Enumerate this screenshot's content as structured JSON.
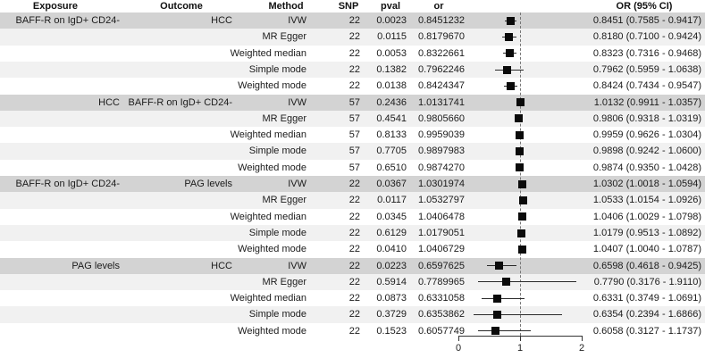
{
  "table": {
    "headers": [
      "Exposure",
      "Outcome",
      "Method",
      "SNP",
      "pval",
      "or",
      "OR (95% CI)"
    ]
  },
  "axis": {
    "tick_labels": [
      "0",
      "1",
      "2"
    ],
    "tick_values": [
      0,
      1,
      2
    ],
    "reference_value": 1
  },
  "colors": {
    "band_dark": "#d3d3d3",
    "band_light": "#f1f1f1",
    "band_white": "#ffffff",
    "marker": "#0b0b0b",
    "ci_line": "#2a2a2a",
    "reference_line": "#777777",
    "text": "#1b1b1b"
  },
  "chart_data": {
    "type": "scatter",
    "variant": "forest_plot",
    "title": "",
    "xlabel": "",
    "xlim": [
      0,
      2
    ],
    "x_ticks": [
      0,
      1,
      2
    ],
    "reference_line": 1,
    "legend": null,
    "rows": [
      {
        "exposure": "BAFF-R on IgD+ CD24-",
        "outcome": "HCC",
        "method": "IVW",
        "snp": 22,
        "pval": "0.0023",
        "or": "0.8451232",
        "ci_label": "0.8451 (0.7585 - 0.9417)",
        "est": 0.8451,
        "lo": 0.7585,
        "hi": 0.9417
      },
      {
        "exposure": "",
        "outcome": "",
        "method": "MR Egger",
        "snp": 22,
        "pval": "0.0115",
        "or": "0.8179670",
        "ci_label": "0.8180 (0.7100 - 0.9424)",
        "est": 0.818,
        "lo": 0.71,
        "hi": 0.9424
      },
      {
        "exposure": "",
        "outcome": "",
        "method": "Weighted median",
        "snp": 22,
        "pval": "0.0053",
        "or": "0.8322661",
        "ci_label": "0.8323 (0.7316 - 0.9468)",
        "est": 0.8323,
        "lo": 0.7316,
        "hi": 0.9468
      },
      {
        "exposure": "",
        "outcome": "",
        "method": "Simple mode",
        "snp": 22,
        "pval": "0.1382",
        "or": "0.7962246",
        "ci_label": "0.7962 (0.5959 - 1.0638)",
        "est": 0.7962,
        "lo": 0.5959,
        "hi": 1.0638
      },
      {
        "exposure": "",
        "outcome": "",
        "method": "Weighted mode",
        "snp": 22,
        "pval": "0.0138",
        "or": "0.8424347",
        "ci_label": "0.8424 (0.7434 - 0.9547)",
        "est": 0.8424,
        "lo": 0.7434,
        "hi": 0.9547
      },
      {
        "exposure": "HCC",
        "outcome": "BAFF-R on IgD+ CD24-",
        "method": "IVW",
        "snp": 57,
        "pval": "0.2436",
        "or": "1.0131741",
        "ci_label": "1.0132 (0.9911 - 1.0357)",
        "est": 1.0132,
        "lo": 0.9911,
        "hi": 1.0357
      },
      {
        "exposure": "",
        "outcome": "",
        "method": "MR Egger",
        "snp": 57,
        "pval": "0.4541",
        "or": "0.9805660",
        "ci_label": "0.9806 (0.9318 - 1.0319)",
        "est": 0.9806,
        "lo": 0.9318,
        "hi": 1.0319
      },
      {
        "exposure": "",
        "outcome": "",
        "method": "Weighted median",
        "snp": 57,
        "pval": "0.8133",
        "or": "0.9959039",
        "ci_label": "0.9959 (0.9626 - 1.0304)",
        "est": 0.9959,
        "lo": 0.9626,
        "hi": 1.0304
      },
      {
        "exposure": "",
        "outcome": "",
        "method": "Simple mode",
        "snp": 57,
        "pval": "0.7705",
        "or": "0.9897983",
        "ci_label": "0.9898 (0.9242 - 1.0600)",
        "est": 0.9898,
        "lo": 0.9242,
        "hi": 1.06
      },
      {
        "exposure": "",
        "outcome": "",
        "method": "Weighted mode",
        "snp": 57,
        "pval": "0.6510",
        "or": "0.9874270",
        "ci_label": "0.9874 (0.9350 - 1.0428)",
        "est": 0.9874,
        "lo": 0.935,
        "hi": 1.0428
      },
      {
        "exposure": "BAFF-R on IgD+ CD24-",
        "outcome": "PAG levels",
        "method": "IVW",
        "snp": 22,
        "pval": "0.0367",
        "or": "1.0301974",
        "ci_label": "1.0302 (1.0018 - 1.0594)",
        "est": 1.0302,
        "lo": 1.0018,
        "hi": 1.0594
      },
      {
        "exposure": "",
        "outcome": "",
        "method": "MR Egger",
        "snp": 22,
        "pval": "0.0117",
        "or": "1.0532797",
        "ci_label": "1.0533 (1.0154 - 1.0926)",
        "est": 1.0533,
        "lo": 1.0154,
        "hi": 1.0926
      },
      {
        "exposure": "",
        "outcome": "",
        "method": "Weighted median",
        "snp": 22,
        "pval": "0.0345",
        "or": "1.0406478",
        "ci_label": "1.0406 (1.0029 - 1.0798)",
        "est": 1.0406,
        "lo": 1.0029,
        "hi": 1.0798
      },
      {
        "exposure": "",
        "outcome": "",
        "method": "Simple mode",
        "snp": 22,
        "pval": "0.6129",
        "or": "1.0179051",
        "ci_label": "1.0179 (0.9513 - 1.0892)",
        "est": 1.0179,
        "lo": 0.9513,
        "hi": 1.0892
      },
      {
        "exposure": "",
        "outcome": "",
        "method": "Weighted mode",
        "snp": 22,
        "pval": "0.0410",
        "or": "1.0406729",
        "ci_label": "1.0407 (1.0040 - 1.0787)",
        "est": 1.0407,
        "lo": 1.004,
        "hi": 1.0787
      },
      {
        "exposure": "PAG levels",
        "outcome": "HCC",
        "method": "IVW",
        "snp": 22,
        "pval": "0.0223",
        "or": "0.6597625",
        "ci_label": "0.6598 (0.4618 - 0.9425)",
        "est": 0.6598,
        "lo": 0.4618,
        "hi": 0.9425
      },
      {
        "exposure": "",
        "outcome": "",
        "method": "MR Egger",
        "snp": 22,
        "pval": "0.5914",
        "or": "0.7789965",
        "ci_label": "0.7790 (0.3176 - 1.9110)",
        "est": 0.779,
        "lo": 0.3176,
        "hi": 1.911
      },
      {
        "exposure": "",
        "outcome": "",
        "method": "Weighted median",
        "snp": 22,
        "pval": "0.0873",
        "or": "0.6331058",
        "ci_label": "0.6331 (0.3749 - 1.0691)",
        "est": 0.6331,
        "lo": 0.3749,
        "hi": 1.0691
      },
      {
        "exposure": "",
        "outcome": "",
        "method": "Simple mode",
        "snp": 22,
        "pval": "0.3729",
        "or": "0.6353862",
        "ci_label": "0.6354 (0.2394 - 1.6866)",
        "est": 0.6354,
        "lo": 0.2394,
        "hi": 1.6866
      },
      {
        "exposure": "",
        "outcome": "",
        "method": "Weighted mode",
        "snp": 22,
        "pval": "0.1523",
        "or": "0.6057749",
        "ci_label": "0.6058 (0.3127 - 1.1737)",
        "est": 0.6058,
        "lo": 0.3127,
        "hi": 1.1737
      }
    ]
  }
}
